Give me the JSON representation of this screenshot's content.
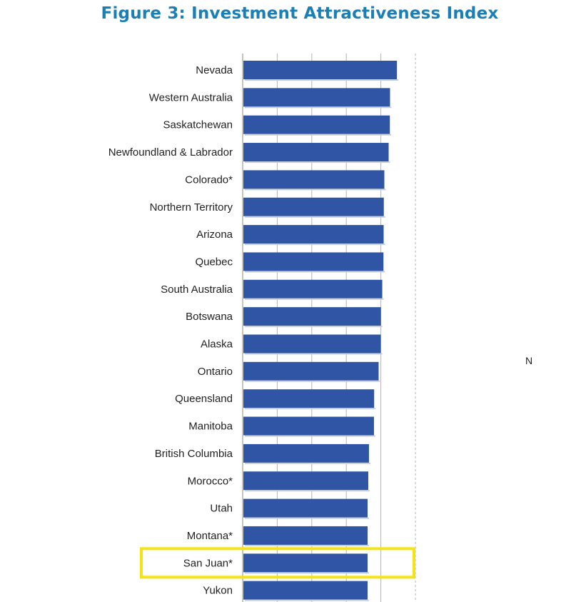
{
  "chart_data": {
    "type": "bar",
    "orientation": "horizontal",
    "title": "Figure 3: Investment Attractiveness Index",
    "categories": [
      "Nevada",
      "Western Australia",
      "Saskatchewan",
      "Newfoundland & Labrador",
      "Colorado*",
      "Northern Territory",
      "Arizona",
      "Quebec",
      "South Australia",
      "Botswana",
      "Alaska",
      "Ontario",
      "Queensland",
      "Manitoba",
      "British Columbia",
      "Morocco*",
      "Utah",
      "Montana*",
      "San Juan*",
      "Yukon"
    ],
    "values": [
      88.9,
      84.9,
      84.8,
      84.1,
      81.6,
      81.3,
      81.2,
      81.1,
      80.4,
      79.6,
      79.5,
      78.3,
      75.7,
      75.6,
      72.7,
      72.3,
      71.9,
      71.9,
      71.9,
      71.9
    ],
    "xlim": [
      0,
      100
    ],
    "grid": true,
    "bar_color": "#2f55a4",
    "highlight": {
      "category": "San Juan*",
      "color": "#f5e415"
    }
  },
  "stray_text": "N"
}
